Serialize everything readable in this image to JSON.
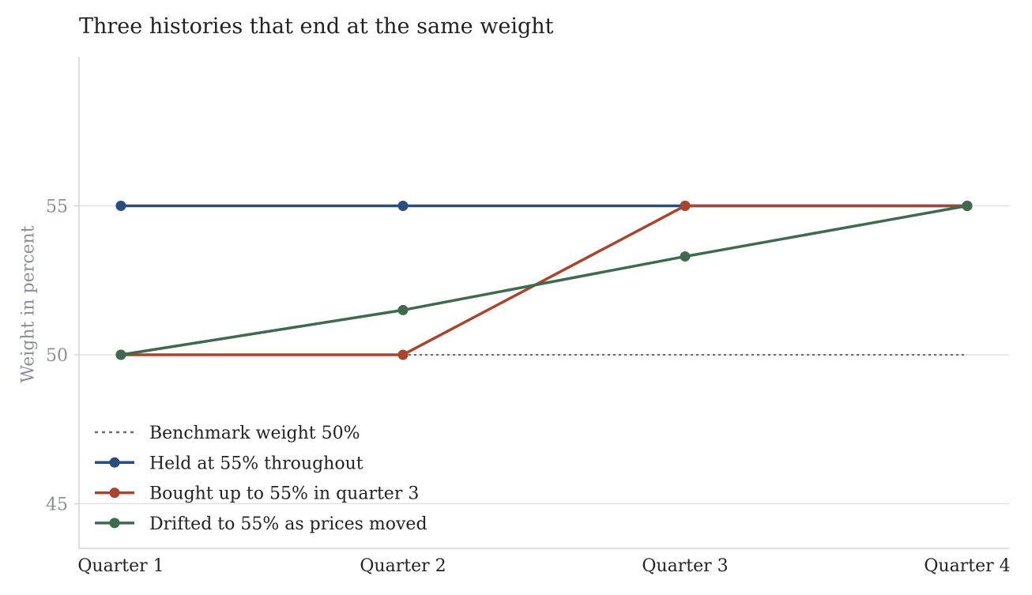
{
  "chart_data": {
    "type": "line",
    "title": "Three histories that end at the same weight",
    "xlabel": "",
    "ylabel": "Weight in percent",
    "categories": [
      "Quarter 1",
      "Quarter 2",
      "Quarter 3",
      "Quarter 4"
    ],
    "ylim": [
      43.5,
      60
    ],
    "yticks": [
      45,
      50,
      55
    ],
    "grid": "horizontal",
    "legend_position": "bottom-left",
    "benchmark": {
      "name": "Benchmark weight 50%",
      "value": 50,
      "color": "#6b6b6b",
      "style": "dotted"
    },
    "series": [
      {
        "name": "Held at 55% throughout",
        "values": [
          55,
          55,
          55,
          55
        ],
        "color": "#2b4c7e"
      },
      {
        "name": "Bought up to 55% in quarter 3",
        "values": [
          50,
          50,
          55,
          55
        ],
        "color": "#a8452e"
      },
      {
        "name": "Drifted to 55% as prices moved",
        "values": [
          50,
          51.5,
          53.3,
          55
        ],
        "color": "#3f6a4f"
      }
    ]
  }
}
